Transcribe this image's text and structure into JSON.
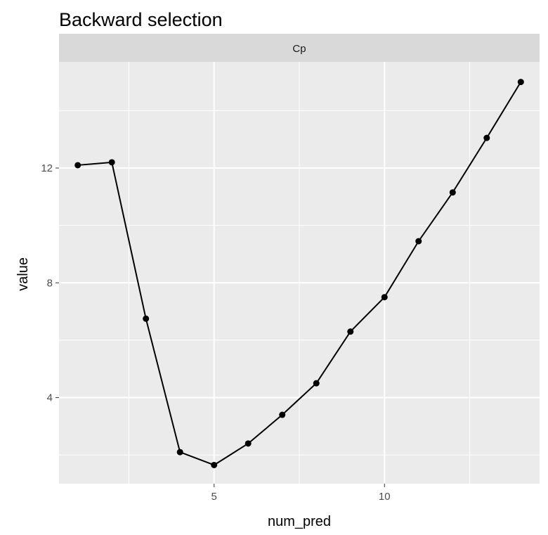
{
  "chart_data": {
    "type": "line",
    "title": "Backward selection",
    "facet_label": "Cp",
    "xlabel": "num_pred",
    "ylabel": "value",
    "x": [
      1,
      2,
      3,
      4,
      5,
      6,
      7,
      8,
      9,
      10,
      11,
      12,
      13,
      14
    ],
    "series": [
      {
        "values": [
          12.1,
          12.2,
          6.75,
          2.1,
          1.65,
          2.4,
          3.4,
          4.5,
          6.3,
          7.5,
          9.45,
          11.15,
          13.05,
          15.0
        ]
      }
    ],
    "xlim": [
      0.45,
      14.55
    ],
    "ylim": [
      1.0,
      15.7
    ],
    "x_ticks": [
      5,
      10
    ],
    "x_tick_labels": [
      "5",
      "10"
    ],
    "y_ticks": [
      4,
      8,
      12
    ],
    "y_tick_labels": [
      "4",
      "8",
      "12"
    ],
    "grid": true,
    "legend": "none",
    "colors": {
      "panel_background": "#ebebeb",
      "strip_background": "#d9d9d9",
      "grid_line": "#ffffff",
      "line": "#000000",
      "point": "#000000"
    }
  }
}
